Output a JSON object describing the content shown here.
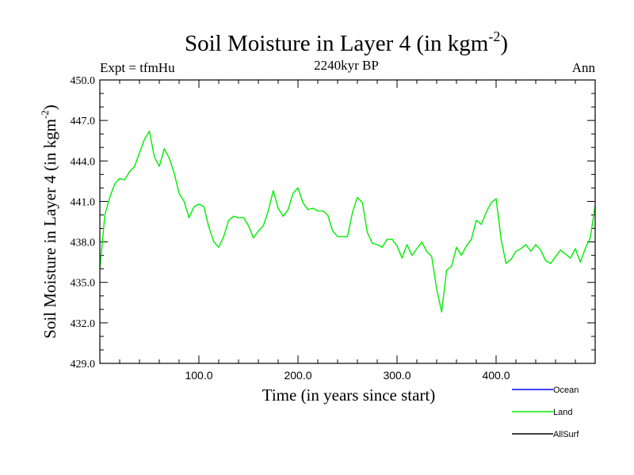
{
  "chart_data": {
    "type": "line",
    "title_main": "Soil Moisture in Layer 4 (in kgm",
    "title_sup": "-2",
    "title_close": ")",
    "subtitle": "2240kyr BP",
    "left_label": "Expt = tfmHu",
    "right_label": "Ann",
    "xlabel": "Time (in years since start)",
    "ylabel_main": "Soil Moisture in Layer 4 (in kgm",
    "ylabel_sup": "-2",
    "ylabel_close": ")",
    "xlim": [
      0,
      500
    ],
    "ylim": [
      429,
      450
    ],
    "x_ticks": [
      100,
      200,
      300,
      400
    ],
    "x_tick_labels": [
      "100.0",
      "200.0",
      "300.0",
      "400.0"
    ],
    "y_ticks": [
      429,
      432,
      435,
      438,
      441,
      444,
      447,
      450
    ],
    "y_tick_labels": [
      "429.0",
      "432.0",
      "435.0",
      "438.0",
      "441.0",
      "444.0",
      "447.0",
      "450.0"
    ],
    "legend": [
      {
        "name": "Ocean",
        "color": "#0000ff"
      },
      {
        "name": "Land",
        "color": "#00ee00"
      },
      {
        "name": "AllSurf",
        "color": "#000000"
      }
    ],
    "series": [
      {
        "name": "Land",
        "color": "#00ee00",
        "x": [
          0,
          5,
          10,
          15,
          20,
          25,
          30,
          35,
          40,
          45,
          50,
          55,
          60,
          65,
          70,
          75,
          80,
          85,
          90,
          95,
          100,
          105,
          110,
          115,
          120,
          125,
          130,
          135,
          140,
          145,
          150,
          155,
          160,
          165,
          170,
          175,
          180,
          185,
          190,
          195,
          200,
          205,
          210,
          215,
          220,
          225,
          230,
          235,
          240,
          245,
          250,
          255,
          260,
          265,
          270,
          275,
          280,
          285,
          290,
          295,
          300,
          305,
          310,
          315,
          320,
          325,
          330,
          335,
          340,
          345,
          350,
          355,
          360,
          365,
          370,
          375,
          380,
          385,
          390,
          395,
          400,
          405,
          410,
          415,
          420,
          425,
          430,
          435,
          440,
          445,
          450,
          455,
          460,
          465,
          470,
          475,
          480,
          485,
          490,
          495,
          500
        ],
        "values": [
          436.0,
          440.0,
          441.3,
          442.3,
          442.7,
          442.6,
          443.2,
          443.6,
          444.6,
          445.6,
          446.2,
          444.3,
          443.6,
          444.9,
          444.2,
          443.1,
          441.6,
          441.0,
          439.8,
          440.6,
          440.8,
          440.6,
          439.1,
          438.0,
          437.6,
          438.4,
          439.6,
          439.9,
          439.8,
          439.8,
          439.2,
          438.3,
          438.8,
          439.2,
          440.3,
          441.8,
          440.5,
          439.9,
          440.4,
          441.6,
          442.0,
          440.9,
          440.4,
          440.5,
          440.3,
          440.3,
          440.0,
          438.8,
          438.4,
          438.4,
          438.4,
          440.2,
          441.3,
          440.9,
          438.7,
          437.9,
          437.8,
          437.6,
          438.2,
          438.2,
          437.7,
          436.8,
          437.8,
          437.0,
          437.5,
          438.0,
          437.3,
          436.9,
          434.5,
          432.8,
          435.9,
          436.2,
          437.6,
          437.0,
          437.7,
          438.2,
          439.6,
          439.3,
          440.2,
          440.9,
          441.2,
          438.2,
          436.4,
          436.7,
          437.3,
          437.5,
          437.8,
          437.3,
          437.8,
          437.4,
          436.6,
          436.4,
          436.9,
          437.4,
          437.1,
          436.8,
          437.5,
          436.5,
          437.5,
          438.3,
          440.7
        ]
      }
    ]
  }
}
